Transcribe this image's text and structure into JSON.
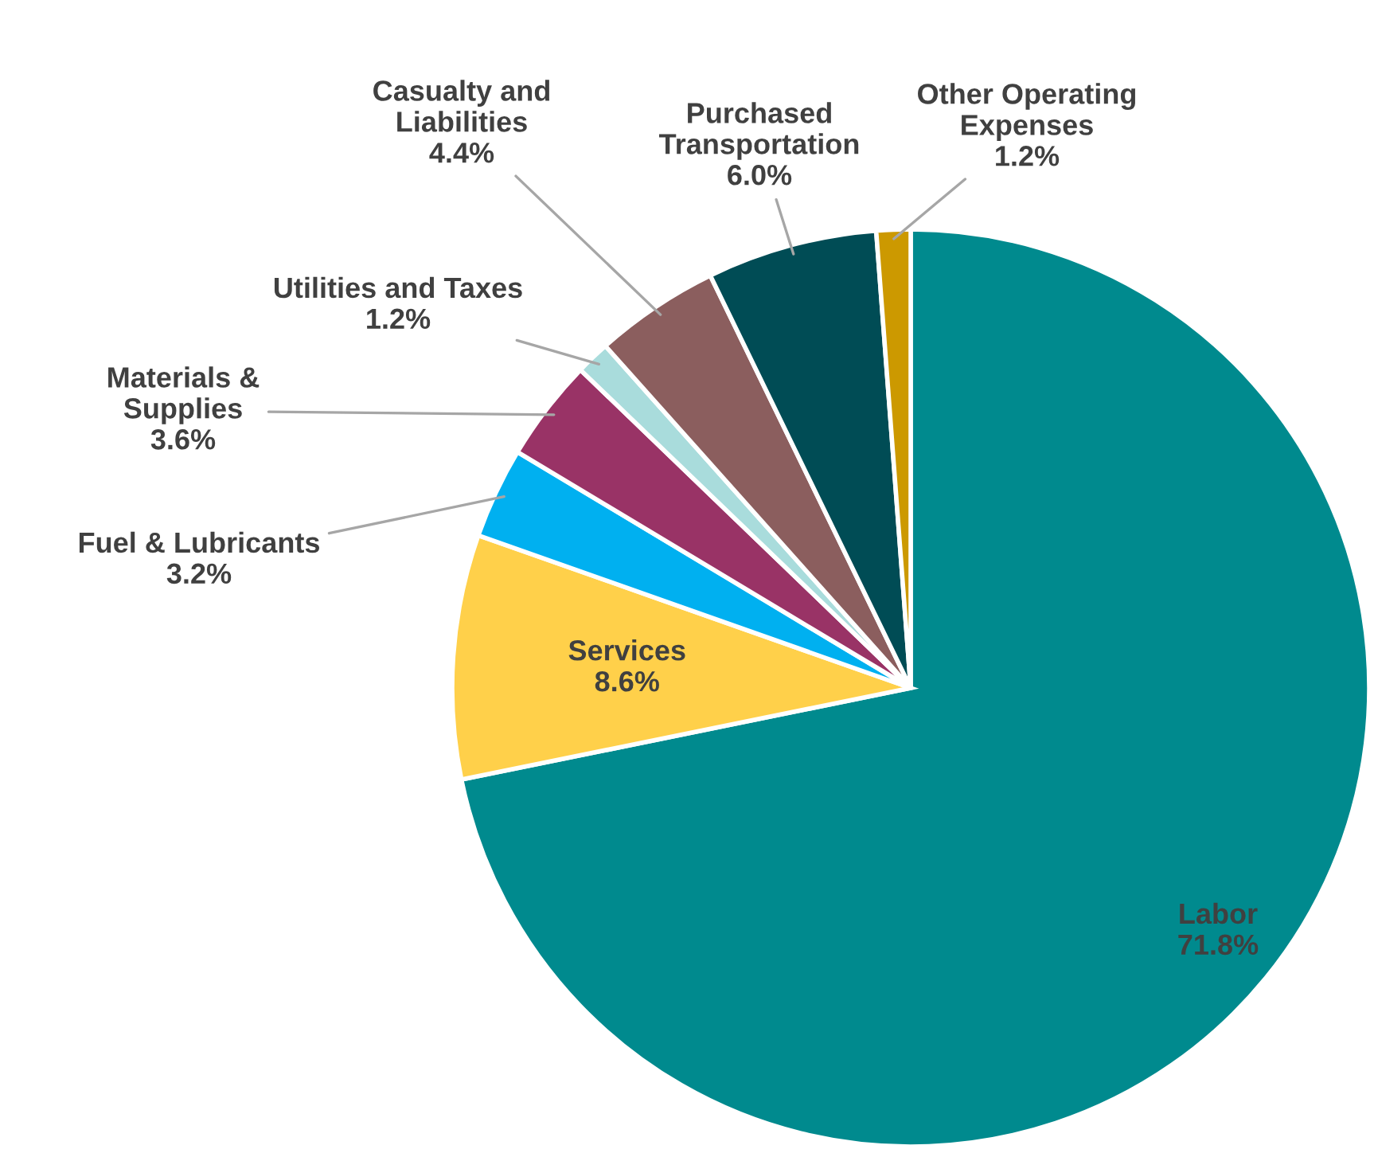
{
  "chart_data": {
    "type": "pie",
    "categories": [
      "Labor",
      "Services",
      "Fuel & Lubricants",
      "Materials &\nSupplies",
      "Utilities and Taxes",
      "Casualty and\nLiabilities",
      "Purchased\nTransportation",
      "Other Operating\nExpenses"
    ],
    "values": [
      71.8,
      8.6,
      3.2,
      3.6,
      1.2,
      4.4,
      6.0,
      1.2
    ],
    "colors": [
      "#008a8e",
      "#ffd04a",
      "#00b0f0",
      "#993366",
      "#a9dcdc",
      "#8b5e5e",
      "#004c55",
      "#cc9900"
    ],
    "value_labels": [
      "71.8%",
      "8.6%",
      "3.2%",
      "3.6%",
      "1.2%",
      "4.4%",
      "6.0%",
      "1.2%"
    ],
    "legend": false
  }
}
